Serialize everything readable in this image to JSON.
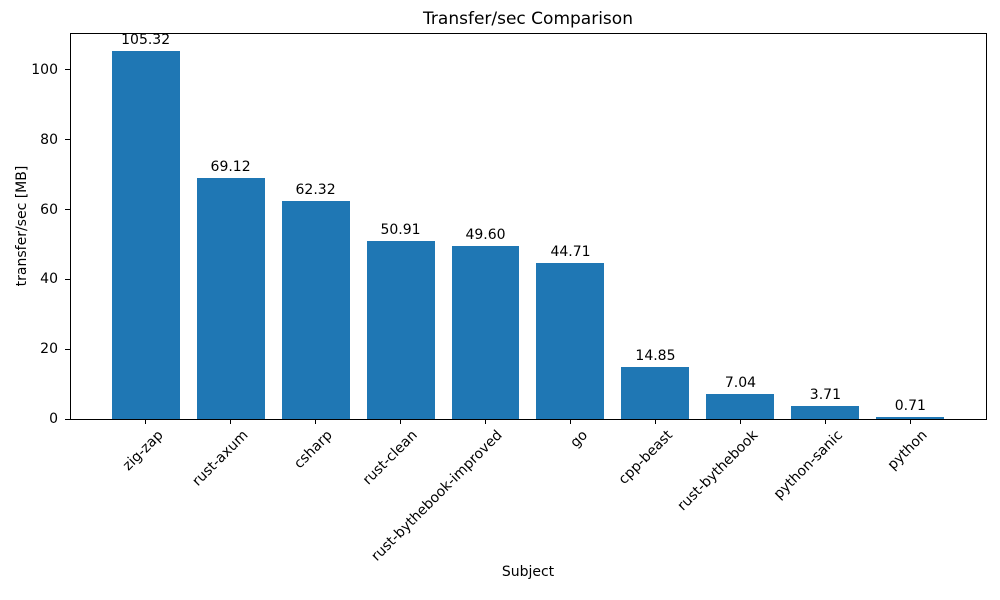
{
  "chart_data": {
    "type": "bar",
    "title": "Transfer/sec Comparison",
    "xlabel": "Subject",
    "ylabel": "transfer/sec [MB]",
    "categories": [
      "zig-zap",
      "rust-axum",
      "csharp",
      "rust-clean",
      "rust-bythebook-improved",
      "go",
      "cpp-beast",
      "rust-bythebook",
      "python-sanic",
      "python"
    ],
    "values": [
      105.32,
      69.12,
      62.32,
      50.91,
      49.6,
      44.71,
      14.85,
      7.04,
      3.71,
      0.71
    ],
    "value_labels": [
      "105.32",
      "69.12",
      "62.32",
      "50.91",
      "49.60",
      "44.71",
      "14.85",
      "7.04",
      "3.71",
      "0.71"
    ],
    "bar_color": "#1f77b4",
    "axis_color": "#000000",
    "text_color": "#000000",
    "background_color": "#ffffff",
    "ylim": [
      0,
      110.6
    ],
    "yticks": [
      0,
      20,
      40,
      60,
      80,
      100
    ],
    "x_tick_rotation_deg": 45,
    "grid": false,
    "legend": "none"
  }
}
